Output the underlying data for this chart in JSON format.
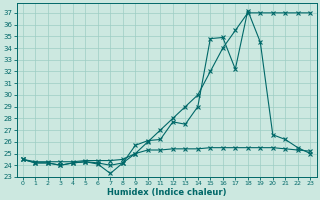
{
  "xlabel": "Humidex (Indice chaleur)",
  "xlim": [
    -0.5,
    23.5
  ],
  "ylim": [
    23.0,
    37.8
  ],
  "yticks": [
    23,
    24,
    25,
    26,
    27,
    28,
    29,
    30,
    31,
    32,
    33,
    34,
    35,
    36,
    37
  ],
  "xticks": [
    0,
    1,
    2,
    3,
    4,
    5,
    6,
    7,
    8,
    9,
    10,
    11,
    12,
    13,
    14,
    15,
    16,
    17,
    18,
    19,
    20,
    21,
    22,
    23
  ],
  "bg_color": "#cce8e0",
  "grid_color": "#9dcdc4",
  "line_color": "#006868",
  "series1_x": [
    0,
    1,
    2,
    3,
    4,
    5,
    6,
    7,
    8,
    9,
    10,
    11,
    12,
    13,
    14,
    15,
    16,
    17,
    18,
    19,
    20,
    21,
    22,
    23
  ],
  "series1_y": [
    24.5,
    24.3,
    24.3,
    24.3,
    24.3,
    24.4,
    24.4,
    24.4,
    24.5,
    25.0,
    26.0,
    27.0,
    28.0,
    29.0,
    30.0,
    32.0,
    34.0,
    35.5,
    37.0,
    37.0,
    37.0,
    37.0,
    37.0,
    37.0
  ],
  "series2_x": [
    0,
    1,
    2,
    3,
    4,
    5,
    6,
    7,
    8,
    9,
    10,
    11,
    12,
    13,
    14,
    15,
    16,
    17,
    18,
    19,
    20,
    21,
    22,
    23
  ],
  "series2_y": [
    24.5,
    24.2,
    24.2,
    24.0,
    24.2,
    24.3,
    24.1,
    23.3,
    24.2,
    25.7,
    26.1,
    26.2,
    27.7,
    27.5,
    29.0,
    34.8,
    34.9,
    32.2,
    37.2,
    34.5,
    26.6,
    26.2,
    25.5,
    25.0
  ],
  "series3_x": [
    0,
    1,
    2,
    3,
    4,
    5,
    6,
    7,
    8,
    9,
    10,
    11,
    12,
    13,
    14,
    15,
    16,
    17,
    18,
    19,
    20,
    21,
    22,
    23
  ],
  "series3_y": [
    24.5,
    24.2,
    24.2,
    24.0,
    24.2,
    24.3,
    24.2,
    24.0,
    24.2,
    25.0,
    25.3,
    25.3,
    25.4,
    25.4,
    25.4,
    25.5,
    25.5,
    25.5,
    25.5,
    25.5,
    25.5,
    25.4,
    25.3,
    25.2
  ]
}
